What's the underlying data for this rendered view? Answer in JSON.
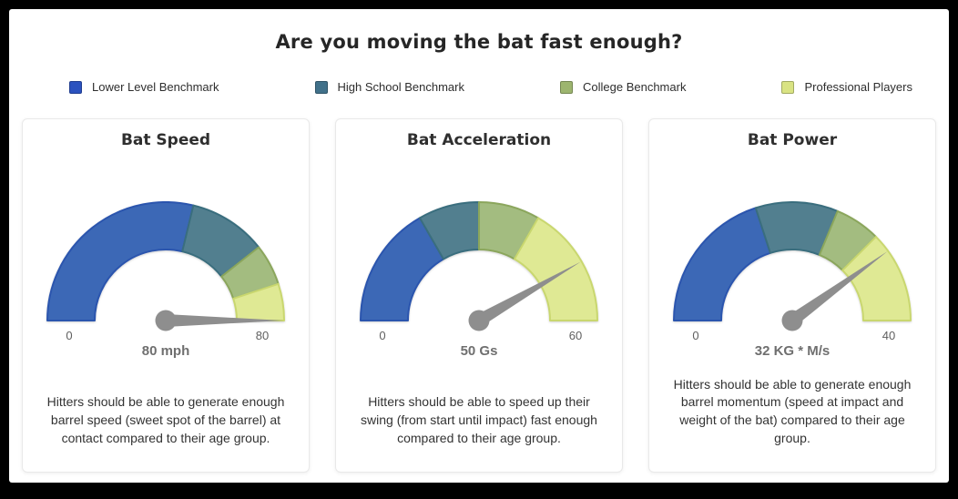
{
  "title": "Are you moving the bat fast enough?",
  "needle_color": "#8E8E8E",
  "benchmarks": [
    {
      "label": "Lower Level Benchmark",
      "swatch": "#2B52BF",
      "arc_fill": "#3C68B6",
      "arc_stroke": "#2B55AE"
    },
    {
      "label": "High School Benchmark",
      "swatch": "#41718A",
      "arc_fill": "#527F8F",
      "arc_stroke": "#3A6E7E"
    },
    {
      "label": "College Benchmark",
      "swatch": "#9DB56F",
      "arc_fill": "#A3BC80",
      "arc_stroke": "#8BA65C"
    },
    {
      "label": "Professional Players",
      "swatch": "#D9E383",
      "arc_fill": "#DFE994",
      "arc_stroke": "#C9D76F"
    }
  ],
  "chart_data": [
    {
      "type": "gauge",
      "title": "Bat Speed",
      "min": 0,
      "max": 80,
      "value": 80,
      "value_label": "80 mph",
      "min_tick": "0",
      "max_tick": "80",
      "segments": [
        {
          "benchmark": "Lower Level Benchmark",
          "from": 0,
          "to": 46
        },
        {
          "benchmark": "High School Benchmark",
          "from": 46,
          "to": 63
        },
        {
          "benchmark": "College Benchmark",
          "from": 63,
          "to": 72
        },
        {
          "benchmark": "Professional Players",
          "from": 72,
          "to": 80
        }
      ],
      "description": "Hitters should be able to generate enough barrel speed (sweet spot of the barrel) at contact compared to their age group."
    },
    {
      "type": "gauge",
      "title": "Bat Acceleration",
      "min": 0,
      "max": 60,
      "value": 50,
      "value_label": "50 Gs",
      "min_tick": "0",
      "max_tick": "60",
      "segments": [
        {
          "benchmark": "Lower Level Benchmark",
          "from": 0,
          "to": 20
        },
        {
          "benchmark": "High School Benchmark",
          "from": 20,
          "to": 30
        },
        {
          "benchmark": "College Benchmark",
          "from": 30,
          "to": 40
        },
        {
          "benchmark": "Professional Players",
          "from": 40,
          "to": 60
        }
      ],
      "description": "Hitters should be able to speed up their swing (from start until impact) fast enough compared to their age group."
    },
    {
      "type": "gauge",
      "title": "Bat Power",
      "min": 0,
      "max": 40,
      "value": 32,
      "value_label": "32 KG * M/s",
      "min_tick": "0",
      "max_tick": "40",
      "segments": [
        {
          "benchmark": "Lower Level Benchmark",
          "from": 0,
          "to": 16
        },
        {
          "benchmark": "High School Benchmark",
          "from": 16,
          "to": 25
        },
        {
          "benchmark": "College Benchmark",
          "from": 25,
          "to": 30
        },
        {
          "benchmark": "Professional Players",
          "from": 30,
          "to": 40
        }
      ],
      "description": "Hitters should be able to generate enough barrel momentum (speed at impact and weight of the bat) compared to their age group."
    }
  ]
}
